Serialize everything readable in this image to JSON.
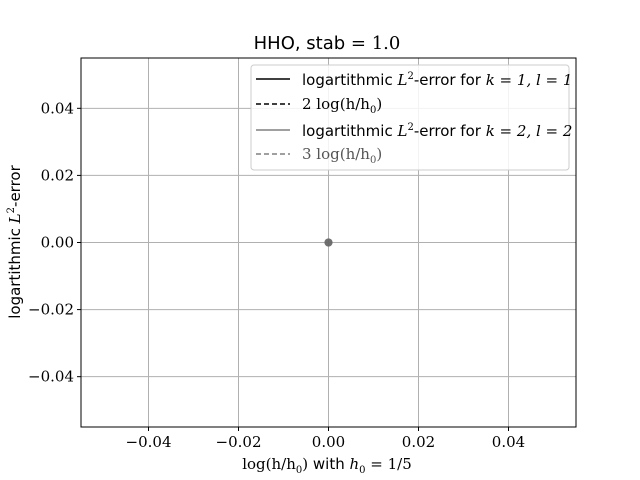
{
  "chart_data": {
    "type": "line",
    "title": {
      "prefix": "HHO, stab ",
      "math": "= 1.0"
    },
    "xlabel": {
      "math_a": "log(h/h",
      "sub": "0",
      "math_b": ")",
      "text": " with ",
      "math_c": "h",
      "sub2": "0",
      "math_d": " = 1/5"
    },
    "ylabel": {
      "text_a": "logartithmic ",
      "math": "L",
      "sup": "2",
      "text_b": "-error"
    },
    "xlim": [
      -0.055,
      0.055
    ],
    "ylim": [
      -0.055,
      0.055
    ],
    "xticks": [
      -0.04,
      -0.02,
      0.0,
      0.02,
      0.04
    ],
    "xtick_labels": [
      "−0.04",
      "−0.02",
      "0.00",
      "0.02",
      "0.04"
    ],
    "yticks": [
      -0.04,
      -0.02,
      0.0,
      0.02,
      0.04
    ],
    "ytick_labels": [
      "−0.04",
      "−0.02",
      "0.00",
      "0.02",
      "0.04"
    ],
    "grid": true,
    "legend_position": "top-right",
    "series": [
      {
        "name": "logartithmic L²-error for k = 1, l = 1",
        "legend_parts": {
          "a": "logartithmic ",
          "m": "L",
          "sup": "2",
          "b": "-error for ",
          "c": "k = 1, l = 1"
        },
        "color": "#000000",
        "dash": "solid",
        "marker": "circle",
        "x": [
          0.0
        ],
        "y": [
          0.0
        ]
      },
      {
        "name": "2 log(h/h₀)",
        "legend_parts": {
          "a": "2 log(h/h",
          "sub": "0",
          "b": ")"
        },
        "color": "#000000",
        "dash": "dashed",
        "marker": "none",
        "x": [
          0.0
        ],
        "y": [
          0.0
        ]
      },
      {
        "name": "logartithmic L²-error for k = 2, l = 2",
        "legend_parts": {
          "a": "logartithmic ",
          "m": "L",
          "sup": "2",
          "b": "-error for ",
          "c": "k = 2, l = 2"
        },
        "color": "#808080",
        "dash": "solid",
        "marker": "circle",
        "x": [
          0.0
        ],
        "y": [
          0.0
        ]
      },
      {
        "name": "3 log(h/h₀)",
        "legend_parts": {
          "a": "3 log(h/h",
          "sub": "0",
          "b": ")"
        },
        "color": "#808080",
        "dash": "dashed",
        "marker": "none",
        "x": [
          0.0
        ],
        "y": [
          0.0
        ]
      }
    ]
  }
}
